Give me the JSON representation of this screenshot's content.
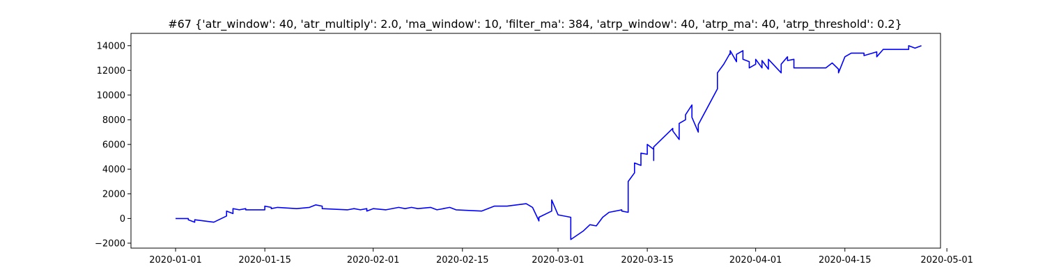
{
  "chart_data": {
    "type": "line",
    "title": "#67 {'atr_window': 40, 'atr_multiply': 2.0, 'ma_window': 10, 'filter_ma': 384, 'atrp_window': 40, 'atrp_ma': 40, 'atrp_threshold': 0.2}",
    "xlabel": "",
    "ylabel": "",
    "x_tick_labels": [
      "2020-01-01",
      "2020-01-15",
      "2020-02-01",
      "2020-02-15",
      "2020-03-01",
      "2020-03-15",
      "2020-04-01",
      "2020-04-15",
      "2020-05-01"
    ],
    "y_tick_labels": [
      "−2000",
      "0",
      "2000",
      "4000",
      "6000",
      "8000",
      "10000",
      "12000",
      "14000"
    ],
    "xlim": [
      "2019-12-25",
      "2020-04-30"
    ],
    "ylim": [
      -2400,
      15000
    ],
    "grid": false,
    "series": [
      {
        "color": "#0000ff",
        "points": [
          [
            "2020-01-01",
            0
          ],
          [
            "2020-01-02",
            0
          ],
          [
            "2020-01-03",
            0
          ],
          [
            "2020-01-03",
            -100
          ],
          [
            "2020-01-04",
            -300
          ],
          [
            "2020-01-04",
            -100
          ],
          [
            "2020-01-07",
            -300
          ],
          [
            "2020-01-09",
            200
          ],
          [
            "2020-01-09",
            600
          ],
          [
            "2020-01-10",
            400
          ],
          [
            "2020-01-10",
            800
          ],
          [
            "2020-01-11",
            700
          ],
          [
            "2020-01-12",
            800
          ],
          [
            "2020-01-12",
            700
          ],
          [
            "2020-01-14",
            700
          ],
          [
            "2020-01-15",
            700
          ],
          [
            "2020-01-15",
            1000
          ],
          [
            "2020-01-16",
            900
          ],
          [
            "2020-01-16",
            800
          ],
          [
            "2020-01-17",
            900
          ],
          [
            "2020-01-20",
            800
          ],
          [
            "2020-01-22",
            900
          ],
          [
            "2020-01-23",
            1100
          ],
          [
            "2020-01-24",
            1000
          ],
          [
            "2020-01-24",
            800
          ],
          [
            "2020-01-28",
            700
          ],
          [
            "2020-01-29",
            800
          ],
          [
            "2020-01-30",
            700
          ],
          [
            "2020-01-31",
            800
          ],
          [
            "2020-01-31",
            600
          ],
          [
            "2020-02-01",
            800
          ],
          [
            "2020-02-03",
            700
          ],
          [
            "2020-02-05",
            900
          ],
          [
            "2020-02-06",
            800
          ],
          [
            "2020-02-07",
            900
          ],
          [
            "2020-02-08",
            800
          ],
          [
            "2020-02-10",
            900
          ],
          [
            "2020-02-11",
            700
          ],
          [
            "2020-02-12",
            800
          ],
          [
            "2020-02-13",
            900
          ],
          [
            "2020-02-14",
            700
          ],
          [
            "2020-02-18",
            600
          ],
          [
            "2020-02-20",
            1000
          ],
          [
            "2020-02-22",
            1000
          ],
          [
            "2020-02-25",
            1200
          ],
          [
            "2020-02-26",
            900
          ],
          [
            "2020-02-27",
            -200
          ],
          [
            "2020-02-27",
            100
          ],
          [
            "2020-02-29",
            600
          ],
          [
            "2020-02-29",
            1500
          ],
          [
            "2020-03-01",
            300
          ],
          [
            "2020-03-03",
            100
          ],
          [
            "2020-03-03",
            -1700
          ],
          [
            "2020-03-05",
            -1000
          ],
          [
            "2020-03-06",
            -500
          ],
          [
            "2020-03-07",
            -600
          ],
          [
            "2020-03-08",
            100
          ],
          [
            "2020-03-09",
            500
          ],
          [
            "2020-03-11",
            700
          ],
          [
            "2020-03-11",
            600
          ],
          [
            "2020-03-12",
            500
          ],
          [
            "2020-03-12",
            1500
          ],
          [
            "2020-03-12",
            3000
          ],
          [
            "2020-03-13",
            3700
          ],
          [
            "2020-03-13",
            4500
          ],
          [
            "2020-03-14",
            4300
          ],
          [
            "2020-03-14",
            5300
          ],
          [
            "2020-03-15",
            5200
          ],
          [
            "2020-03-15",
            6000
          ],
          [
            "2020-03-16",
            5600
          ],
          [
            "2020-03-16",
            4700
          ],
          [
            "2020-03-16",
            5800
          ],
          [
            "2020-03-19",
            7300
          ],
          [
            "2020-03-19",
            7100
          ],
          [
            "2020-03-20",
            6400
          ],
          [
            "2020-03-20",
            7700
          ],
          [
            "2020-03-21",
            8000
          ],
          [
            "2020-03-21",
            8400
          ],
          [
            "2020-03-22",
            9200
          ],
          [
            "2020-03-22",
            8200
          ],
          [
            "2020-03-23",
            7000
          ],
          [
            "2020-03-23",
            7600
          ],
          [
            "2020-03-26",
            10500
          ],
          [
            "2020-03-26",
            11800
          ],
          [
            "2020-03-27",
            12500
          ],
          [
            "2020-03-28",
            13400
          ],
          [
            "2020-03-28",
            13300
          ],
          [
            "2020-03-28",
            13600
          ],
          [
            "2020-03-29",
            12700
          ],
          [
            "2020-03-29",
            13300
          ],
          [
            "2020-03-30",
            13600
          ],
          [
            "2020-03-30",
            12900
          ],
          [
            "2020-03-31",
            12700
          ],
          [
            "2020-03-31",
            12200
          ],
          [
            "2020-04-01",
            12500
          ],
          [
            "2020-04-01",
            12900
          ],
          [
            "2020-04-02",
            12200
          ],
          [
            "2020-04-02",
            12800
          ],
          [
            "2020-04-03",
            12100
          ],
          [
            "2020-04-03",
            12900
          ],
          [
            "2020-04-05",
            11800
          ],
          [
            "2020-04-05",
            12500
          ],
          [
            "2020-04-06",
            13100
          ],
          [
            "2020-04-06",
            12800
          ],
          [
            "2020-04-07",
            12900
          ],
          [
            "2020-04-07",
            12200
          ],
          [
            "2020-04-08",
            12200
          ],
          [
            "2020-04-12",
            12200
          ],
          [
            "2020-04-13",
            12600
          ],
          [
            "2020-04-14",
            12100
          ],
          [
            "2020-04-14",
            11800
          ],
          [
            "2020-04-15",
            13100
          ],
          [
            "2020-04-16",
            13400
          ],
          [
            "2020-04-18",
            13400
          ],
          [
            "2020-04-18",
            13200
          ],
          [
            "2020-04-20",
            13500
          ],
          [
            "2020-04-20",
            13100
          ],
          [
            "2020-04-21",
            13700
          ],
          [
            "2020-04-25",
            13700
          ],
          [
            "2020-04-25",
            14000
          ],
          [
            "2020-04-26",
            13800
          ],
          [
            "2020-04-27",
            14000
          ]
        ]
      }
    ]
  }
}
